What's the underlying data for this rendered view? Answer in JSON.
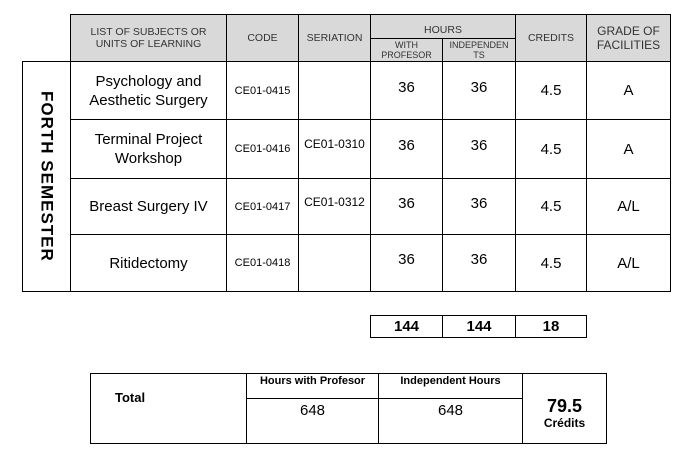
{
  "header": {
    "subjects": "LIST OF SUBJECTS OR UNITS OF LEARNING",
    "code": "CODE",
    "seriation": "SERIATION",
    "hours": "HOURS",
    "with_profesor": "WITH PROFESOR",
    "independents": "INDEPENDEN TS",
    "credits": "CREDITS",
    "grade": "GRADE OF FACILITIES"
  },
  "semester_label": "FORTH SEMESTER",
  "rows": [
    {
      "subject": "Psychology and Aesthetic Surgery",
      "code": "CE01-0415",
      "seriation": "",
      "with_profesor": "36",
      "independent": "36",
      "credits": "4.5",
      "grade": "A"
    },
    {
      "subject": "Terminal Project Workshop",
      "code": "CE01-0416",
      "seriation": "CE01-0310",
      "with_profesor": "36",
      "independent": "36",
      "credits": "4.5",
      "grade": "A"
    },
    {
      "subject": "Breast Surgery IV",
      "code": "CE01-0417",
      "seriation": "CE01-0312",
      "with_profesor": "36",
      "independent": "36",
      "credits": "4.5",
      "grade": "A/L"
    },
    {
      "subject": "Ritidectomy",
      "code": "CE01-0418",
      "seriation": "",
      "with_profesor": "36",
      "independent": "36",
      "credits": "4.5",
      "grade": "A/L"
    }
  ],
  "semester_totals": {
    "with_profesor": "144",
    "independent": "144",
    "credits": "18"
  },
  "summary": {
    "label": "Total",
    "hours_with_profesor_label": "Hours with Profesor",
    "hours_with_profesor": "648",
    "independent_hours_label": "Independent Hours",
    "independent_hours": "648",
    "credits_value": "79.5",
    "credits_label": "Crédits"
  }
}
